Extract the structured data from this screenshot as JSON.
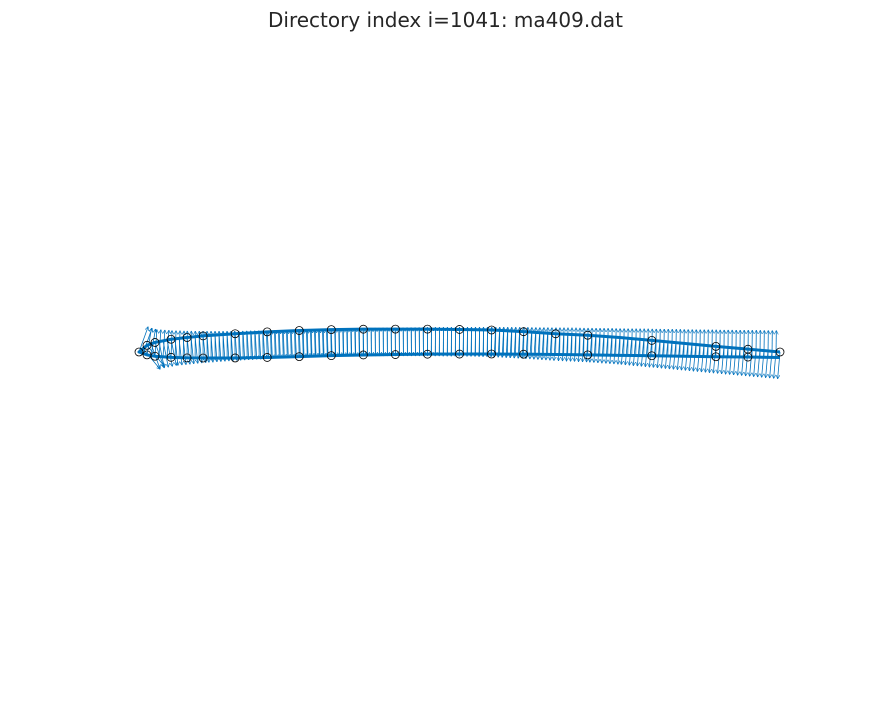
{
  "chart_data": {
    "type": "scatter",
    "title": "Directory index i=1041: ma409.dat",
    "xlabel": "",
    "ylabel": "",
    "axes_visible": false,
    "grid": false,
    "xlim": [
      0,
      1
    ],
    "ylim": [
      -0.05,
      0.075
    ],
    "colors": {
      "outline": "#0072bd",
      "normals": "#0072bd",
      "markers": "#000000"
    },
    "series": [
      {
        "name": "",
        "style": "line",
        "x": [
          1.0,
          0.95,
          0.9,
          0.85,
          0.8,
          0.75,
          0.7,
          0.65,
          0.6,
          0.55,
          0.5,
          0.45,
          0.4,
          0.35,
          0.3,
          0.25,
          0.2,
          0.15,
          0.1,
          0.075,
          0.05,
          0.025,
          0.0125,
          0.0,
          0.0125,
          0.025,
          0.05,
          0.075,
          0.1,
          0.15,
          0.2,
          0.25,
          0.3,
          0.35,
          0.4,
          0.45,
          0.5,
          0.55,
          0.6,
          0.65,
          0.7,
          0.75,
          0.8,
          0.85,
          0.9,
          0.95,
          1.0
        ],
        "y": [
          0.0,
          0.0044,
          0.0088,
          0.0135,
          0.0181,
          0.0227,
          0.0262,
          0.0284,
          0.0317,
          0.0343,
          0.0352,
          0.0357,
          0.0357,
          0.0356,
          0.0349,
          0.0335,
          0.0314,
          0.0285,
          0.0251,
          0.0226,
          0.0199,
          0.0149,
          0.0104,
          0.0,
          -0.0045,
          -0.0066,
          -0.0083,
          -0.0092,
          -0.0094,
          -0.0093,
          -0.0085,
          -0.0072,
          -0.0057,
          -0.0046,
          -0.004,
          -0.0034,
          -0.0032,
          -0.0031,
          -0.0034,
          -0.0039,
          -0.0045,
          -0.0052,
          -0.0059,
          -0.0067,
          -0.0074,
          -0.0079,
          -0.0085
        ]
      },
      {
        "name": "",
        "style": "markers",
        "x": [
          1.0,
          0.95,
          0.9,
          0.8,
          0.7,
          0.65,
          0.6,
          0.55,
          0.5,
          0.45,
          0.4,
          0.35,
          0.3,
          0.25,
          0.2,
          0.15,
          0.1,
          0.075,
          0.05,
          0.025,
          0.0125,
          0.0,
          0.0125,
          0.025,
          0.05,
          0.075,
          0.1,
          0.15,
          0.2,
          0.25,
          0.3,
          0.35,
          0.4,
          0.45,
          0.5,
          0.55,
          0.6,
          0.7,
          0.8,
          0.9,
          0.95
        ],
        "y": [
          0.0,
          0.0044,
          0.0088,
          0.0181,
          0.0262,
          0.0284,
          0.0317,
          0.0343,
          0.0352,
          0.0357,
          0.0357,
          0.0356,
          0.0349,
          0.0335,
          0.0314,
          0.0285,
          0.0251,
          0.0226,
          0.0199,
          0.0149,
          0.0104,
          0.0,
          -0.0045,
          -0.0066,
          -0.0083,
          -0.0092,
          -0.0094,
          -0.0093,
          -0.0085,
          -0.0072,
          -0.0057,
          -0.0046,
          -0.004,
          -0.0034,
          -0.0032,
          -0.0031,
          -0.0034,
          -0.0045,
          -0.0059,
          -0.0074,
          -0.0079
        ]
      }
    ],
    "annotations": "unit outward normal arrows drawn densely along the airfoil outline"
  }
}
